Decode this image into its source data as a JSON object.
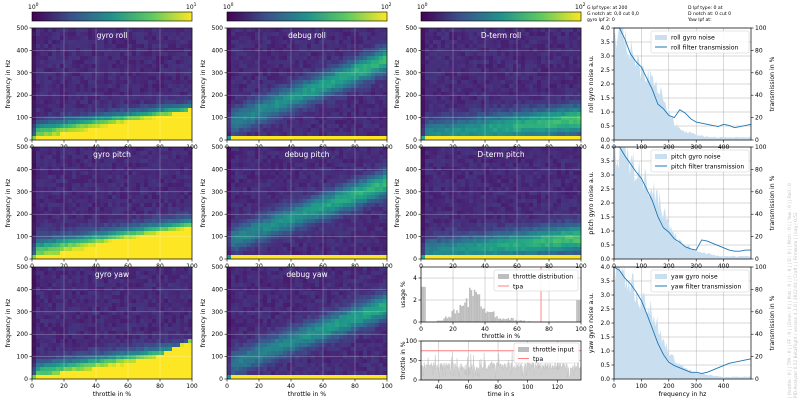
{
  "colors": {
    "heat_low": "#440154",
    "heat_mid": "#21918c",
    "heat_high": "#fde725",
    "gyro_noise_fill": "#c9dff0",
    "filter_line": "#1f77b4",
    "throttle_bar": "#bdbdbd",
    "tpa_line": "#ff7f7f"
  },
  "colorbars": [
    {
      "min_label": "10",
      "min_exp": "0",
      "max_label": "10",
      "max_exp": "1",
      "decades": 1
    },
    {
      "min_label": "10",
      "min_exp": "0",
      "max_label": "10",
      "max_exp": "2",
      "decades": 2
    },
    {
      "min_label": "10",
      "min_exp": "0",
      "max_label": "10",
      "max_exp": "2",
      "decades": 2
    }
  ],
  "heatmaps": [
    {
      "title": "gyro roll",
      "col": 0,
      "row": 0,
      "ylabel": "frequency in Hz",
      "xlabel": "",
      "band_base": 15,
      "band_slope": 0.8,
      "band_width": 50,
      "intensity": 1.2,
      "sat_lo": 1,
      "sat_hi": 0.5
    },
    {
      "title": "debug roll",
      "col": 1,
      "row": 0,
      "ylabel": "frequency in Hz",
      "xlabel": "",
      "band_base": 70,
      "band_slope": 2.9,
      "band_width": 55,
      "intensity": 0.55,
      "sat_lo": 0.15,
      "sat_hi": 0
    },
    {
      "title": "D-term roll",
      "col": 2,
      "row": 0,
      "ylabel": "frequency in Hz",
      "xlabel": "",
      "band_base": 20,
      "band_slope": 0.7,
      "band_width": 60,
      "intensity": 0.6,
      "sat_lo": 0.1,
      "sat_hi": 0
    },
    {
      "title": "gyro pitch",
      "col": 0,
      "row": 1,
      "ylabel": "frequency in Hz",
      "xlabel": "",
      "band_base": 15,
      "band_slope": 0.9,
      "band_width": 60,
      "intensity": 1.2,
      "sat_lo": 1,
      "sat_hi": 0.6
    },
    {
      "title": "debug pitch",
      "col": 1,
      "row": 1,
      "ylabel": "frequency in Hz",
      "xlabel": "",
      "band_base": 80,
      "band_slope": 2.6,
      "band_width": 55,
      "intensity": 0.55,
      "sat_lo": 0.15,
      "sat_hi": 0
    },
    {
      "title": "D-term pitch",
      "col": 2,
      "row": 1,
      "ylabel": "frequency in Hz",
      "xlabel": "",
      "band_base": 25,
      "band_slope": 0.7,
      "band_width": 60,
      "intensity": 0.6,
      "sat_lo": 0.1,
      "sat_hi": 0
    },
    {
      "title": "gyro yaw",
      "col": 0,
      "row": 2,
      "ylabel": "frequency in Hz",
      "xlabel": "throttle in %",
      "band_base": 10,
      "band_slope": 0.8,
      "band_width": 55,
      "intensity": 1.1,
      "sat_lo": 0.9,
      "sat_hi": 1
    },
    {
      "title": "debug yaw",
      "col": 1,
      "row": 2,
      "ylabel": "frequency in Hz",
      "xlabel": "throttle in %",
      "band_base": 60,
      "band_slope": 2.7,
      "band_width": 55,
      "intensity": 0.5,
      "sat_lo": 0.15,
      "sat_hi": 0
    }
  ],
  "heat_axes": {
    "x_ticks": [
      0,
      20,
      40,
      60,
      80,
      100
    ],
    "y_ticks": [
      0,
      100,
      200,
      300,
      400,
      500
    ],
    "xlim": [
      0,
      100
    ],
    "ylim": [
      0,
      500
    ]
  },
  "noise_panels": [
    {
      "ylabel": "roll gyro noise a.u.",
      "y2label": "transmission in %",
      "legend_fill": "roll gyro noise",
      "legend_line": "roll filter transmission",
      "xlabel": "",
      "fill_shape": [
        4.0,
        4.0,
        3.8,
        3.4,
        3.0,
        2.6,
        2.5,
        2.4,
        2.0,
        1.5,
        1.0,
        0.6,
        0.4,
        0.3,
        0.25,
        0.2,
        0.15,
        0.12,
        0.1,
        0.1,
        0.1,
        0.1,
        0.1,
        0.1,
        0.1,
        0.1
      ],
      "transmission": [
        100,
        100,
        90,
        77,
        70,
        65,
        55,
        45,
        32,
        28,
        22,
        20,
        27,
        24,
        19,
        16,
        15,
        14,
        13,
        12,
        14,
        13,
        11,
        12,
        13,
        14
      ]
    },
    {
      "ylabel": "pitch gyro noise a.u.",
      "y2label": "transmission in %",
      "legend_fill": "pitch gyro noise",
      "legend_line": "pitch filter transmission",
      "xlabel": "",
      "fill_shape": [
        4.0,
        4.0,
        3.9,
        3.6,
        3.3,
        3.0,
        2.8,
        2.6,
        2.3,
        1.8,
        1.3,
        0.9,
        0.6,
        0.5,
        0.4,
        0.3,
        0.25,
        0.2,
        0.15,
        0.12,
        0.1,
        0.1,
        0.1,
        0.1,
        0.1,
        0.1
      ],
      "transmission": [
        100,
        100,
        92,
        85,
        78,
        72,
        62,
        52,
        38,
        28,
        24,
        18,
        15,
        11,
        9,
        8,
        17,
        16,
        14,
        12,
        10,
        8,
        7,
        7,
        8,
        8
      ]
    },
    {
      "ylabel": "yaw gyro noise a.u.",
      "y2label": "transmission in %",
      "legend_fill": "yaw gyro noise",
      "legend_line": "yaw filter transmission",
      "xlabel": "frequency in hz",
      "fill_shape": [
        4.0,
        4.0,
        3.8,
        3.5,
        3.1,
        2.8,
        2.6,
        2.4,
        2.0,
        1.5,
        1.0,
        0.7,
        0.5,
        0.4,
        0.3,
        0.25,
        0.2,
        0.15,
        0.12,
        0.1,
        0.08,
        0.08,
        0.08,
        0.08,
        0.08,
        0.08
      ],
      "transmission": [
        100,
        97,
        90,
        85,
        78,
        70,
        58,
        45,
        32,
        22,
        15,
        12,
        10,
        8,
        6,
        6,
        5,
        6,
        8,
        10,
        12,
        14,
        15,
        16,
        17,
        18
      ]
    }
  ],
  "noise_axes": {
    "x_ticks": [
      0,
      100,
      200,
      300,
      400
    ],
    "xlim": [
      0,
      500
    ],
    "y_ticks": [
      "0.0",
      "0.5",
      "1.0",
      "1.5",
      "2.0",
      "2.5",
      "3.0",
      "3.5",
      "4.0"
    ],
    "ylim": [
      0,
      4
    ],
    "y2_ticks": [
      0,
      20,
      40,
      60,
      80,
      100
    ],
    "y2lim": [
      0,
      100
    ]
  },
  "throttle_dist": {
    "ylabel": "usage %",
    "xlabel": "throttle in %",
    "legend_bar": "throttle distribution",
    "legend_line": "tpa",
    "x_ticks": [
      0,
      20,
      40,
      60,
      80,
      100
    ],
    "y_ticks": [
      0,
      2,
      4
    ],
    "ylim": [
      0,
      5
    ],
    "tpa_x": 75,
    "peak_center": 32,
    "peak_width": 12,
    "peak_height": 2.4
  },
  "throttle_time": {
    "ylabel": "throttle in %",
    "xlabel": "time in s",
    "legend_line": "throttle input",
    "legend_tpa": "tpa",
    "x_ticks": [
      40,
      60,
      80,
      100,
      120
    ],
    "xlim": [
      28,
      136
    ],
    "y_ticks": [
      0,
      50,
      100
    ],
    "ylim": [
      0,
      100
    ],
    "tpa_y": 75
  },
  "info": {
    "left": [
      "G lpf type:   at 200",
      "G notch at: 0,0 cut 0,0",
      "gyro lpf 2: 0"
    ],
    "right": [
      "D lpf type:  0 at",
      "D notch at:  0 cut 0",
      "Yaw lpf at:"
    ]
  },
  "side_text": [
    "| throttle : 0 | | TPA : 0 | | FF : 0 | | Dmin : 0 | | Pids : 0 | | I : 0 | | D : 0 | | Pitch : 0 | | Yaw : 0 | | Roll : 0",
    "PID-Analyzer 0.52 BetaFlight / version 4.3.0 | 2022-04 | Craft | | Firmware | | Log | 0.52"
  ]
}
